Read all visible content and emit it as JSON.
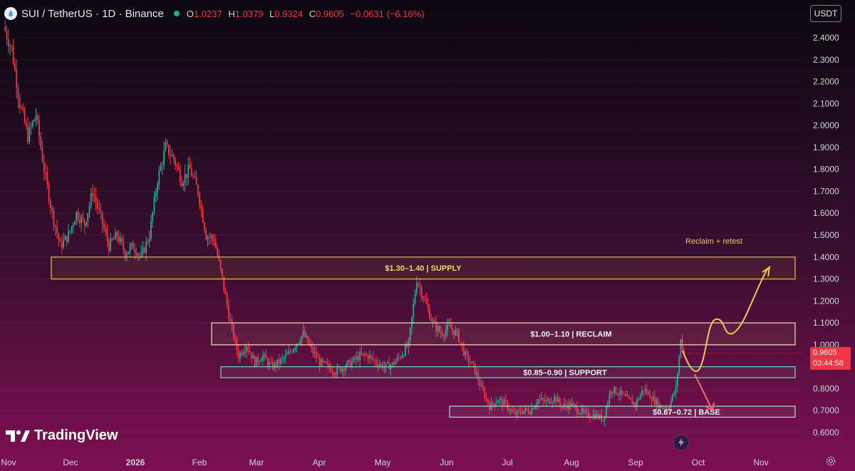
{
  "header": {
    "title": "SUI / TetherUS · 1D · Binance",
    "open_label": "O",
    "open": "1.0237",
    "high_label": "H",
    "high": "1.0379",
    "low_label": "L",
    "low": "0.9324",
    "close_label": "C",
    "close": "0.9605",
    "change": "−0.0631 (−6.16%)",
    "icon": "sui-logo-icon"
  },
  "currency": "USDT",
  "price_tag": {
    "price": "0.9605",
    "countdown": "03:44:58"
  },
  "logo_text": "TradingView",
  "colors": {
    "up": "#22ab94",
    "down": "#f23645",
    "supply": "#e8c24a",
    "support": "#7fd0c0",
    "base": "#a8e0d0",
    "arrow_up": "#f5c84a",
    "arrow_down": "#f06b7a"
  },
  "chart_data": {
    "type": "candlestick",
    "y_axis": {
      "min": 0.6,
      "max": 2.4,
      "ticks": [
        "2.4000",
        "2.3000",
        "2.2000",
        "2.1000",
        "2.0000",
        "1.9000",
        "1.8000",
        "1.7000",
        "1.6000",
        "1.5000",
        "1.4000",
        "1.3000",
        "1.2000",
        "1.1000",
        "1.0000",
        "0.9000",
        "0.8000",
        "0.7000",
        "0.6000"
      ]
    },
    "x_axis": {
      "ticks": [
        "Nov",
        "Dec",
        "2026",
        "Feb",
        "Mar",
        "Apr",
        "May",
        "Jun",
        "Jul",
        "Aug",
        "Sep",
        "Oct",
        "Nov"
      ]
    },
    "price_path": [
      [
        0,
        2.45
      ],
      [
        5,
        2.35
      ],
      [
        10,
        2.1
      ],
      [
        15,
        1.95
      ],
      [
        20,
        2.05
      ],
      [
        25,
        1.8
      ],
      [
        30,
        1.6
      ],
      [
        35,
        1.45
      ],
      [
        40,
        1.5
      ],
      [
        45,
        1.6
      ],
      [
        50,
        1.55
      ],
      [
        55,
        1.7
      ],
      [
        60,
        1.58
      ],
      [
        65,
        1.45
      ],
      [
        70,
        1.5
      ],
      [
        75,
        1.42
      ],
      [
        80,
        1.45
      ],
      [
        85,
        1.4
      ],
      [
        90,
        1.5
      ],
      [
        95,
        1.75
      ],
      [
        100,
        1.9
      ],
      [
        105,
        1.85
      ],
      [
        110,
        1.75
      ],
      [
        115,
        1.8
      ],
      [
        120,
        1.7
      ],
      [
        125,
        1.5
      ],
      [
        130,
        1.48
      ],
      [
        135,
        1.3
      ],
      [
        140,
        1.1
      ],
      [
        145,
        0.95
      ],
      [
        150,
        1.0
      ],
      [
        155,
        0.92
      ],
      [
        160,
        0.95
      ],
      [
        165,
        0.9
      ],
      [
        170,
        0.92
      ],
      [
        175,
        0.95
      ],
      [
        180,
        1.0
      ],
      [
        185,
        1.05
      ],
      [
        190,
        0.98
      ],
      [
        195,
        0.92
      ],
      [
        200,
        0.9
      ],
      [
        205,
        0.88
      ],
      [
        210,
        0.9
      ],
      [
        215,
        0.92
      ],
      [
        220,
        0.95
      ],
      [
        225,
        0.95
      ],
      [
        230,
        0.92
      ],
      [
        235,
        0.9
      ],
      [
        240,
        0.91
      ],
      [
        245,
        0.95
      ],
      [
        250,
        1.0
      ],
      [
        255,
        1.3
      ],
      [
        260,
        1.2
      ],
      [
        265,
        1.1
      ],
      [
        270,
        1.05
      ],
      [
        275,
        1.08
      ],
      [
        280,
        1.05
      ],
      [
        285,
        0.95
      ],
      [
        290,
        0.9
      ],
      [
        295,
        0.8
      ],
      [
        300,
        0.72
      ],
      [
        305,
        0.75
      ],
      [
        310,
        0.73
      ],
      [
        315,
        0.68
      ],
      [
        320,
        0.7
      ],
      [
        325,
        0.7
      ],
      [
        330,
        0.75
      ],
      [
        335,
        0.74
      ],
      [
        340,
        0.76
      ],
      [
        345,
        0.72
      ],
      [
        350,
        0.73
      ],
      [
        355,
        0.7
      ],
      [
        360,
        0.68
      ],
      [
        365,
        0.68
      ],
      [
        370,
        0.66
      ],
      [
        375,
        0.8
      ],
      [
        380,
        0.78
      ],
      [
        385,
        0.75
      ],
      [
        390,
        0.73
      ],
      [
        395,
        0.8
      ],
      [
        400,
        0.76
      ],
      [
        405,
        0.72
      ],
      [
        410,
        0.71
      ],
      [
        415,
        0.8
      ],
      [
        418,
        1.02
      ],
      [
        420,
        0.96
      ]
    ],
    "zones": [
      {
        "label": "$1.30–1.40 | SUPPLY",
        "low": 1.3,
        "high": 1.4,
        "color": "#e8c24a"
      },
      {
        "label": "$1.00–1.10 | RECLAIM",
        "low": 1.0,
        "high": 1.1,
        "color": "#f2e6b0"
      },
      {
        "label": "$0.85–0.90 | SUPPORT",
        "low": 0.85,
        "high": 0.9,
        "color": "#7fd0c0"
      },
      {
        "label": "$0.67–0.72 | BASE",
        "low": 0.67,
        "high": 0.72,
        "color": "#a8e0d0"
      }
    ],
    "annotation": "Reclaim + retest",
    "last_price": 0.9605
  }
}
